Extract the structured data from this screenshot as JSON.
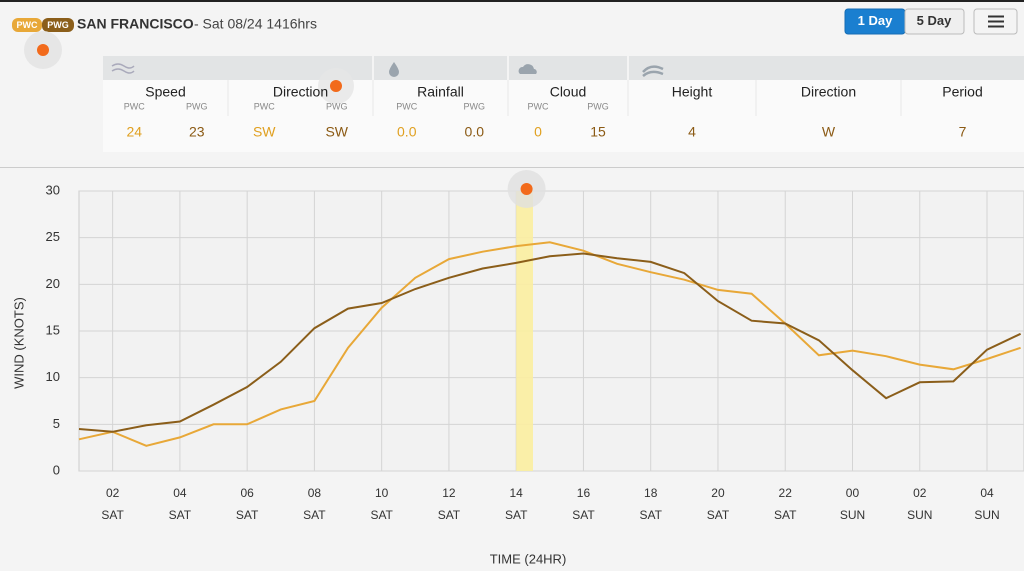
{
  "header": {
    "badges": [
      "PWC",
      "PWG"
    ],
    "location": "SAN FRANCISCO",
    "timestamp": " - Sat 08/24 1416hrs",
    "buttons": [
      "1 Day",
      "5 Day"
    ]
  },
  "conditions": [
    {
      "title": "Speed",
      "sub": [
        "PWC",
        "PWG"
      ],
      "values": [
        "24",
        "23"
      ]
    },
    {
      "title": "Direction",
      "sub": [
        "PWC",
        "PWG"
      ],
      "values": [
        "SW",
        "SW"
      ]
    },
    {
      "title": "Rainfall",
      "sub": [
        "PWC",
        "PWG"
      ],
      "values": [
        "0.0",
        "0.0"
      ]
    },
    {
      "title": "Cloud",
      "sub": [
        "PWC",
        "PWG"
      ],
      "values": [
        "0",
        "15"
      ]
    },
    {
      "title": "Height",
      "values": [
        "4"
      ]
    },
    {
      "title": "Direction",
      "values": [
        "W"
      ]
    },
    {
      "title": "Period",
      "values": [
        "7"
      ]
    }
  ],
  "chart_data": {
    "type": "line",
    "y_label": "WIND (KNOTS)",
    "x_label": "TIME (24HR)",
    "x": [
      1,
      2,
      3,
      4,
      5,
      6,
      7,
      8,
      9,
      10,
      11,
      12,
      13,
      14,
      15,
      16,
      17,
      18,
      19,
      20,
      21,
      22,
      23,
      24,
      25,
      26,
      27,
      28,
      29
    ],
    "series": [
      {
        "name": "PWC",
        "color": "#e8a838",
        "values": [
          3.4,
          4.2,
          2.7,
          3.6,
          5.0,
          5.0,
          6.6,
          7.5,
          13.2,
          17.5,
          20.7,
          22.7,
          23.5,
          24.1,
          24.5,
          23.6,
          22.2,
          21.3,
          20.5,
          19.4,
          19.0,
          15.8,
          12.4,
          12.9,
          12.3,
          11.4,
          10.9,
          12.0,
          13.2
        ]
      },
      {
        "name": "PWG",
        "color": "#8b5e1a",
        "values": [
          4.5,
          4.2,
          4.9,
          5.3,
          7.1,
          9.0,
          11.7,
          15.3,
          17.4,
          18.0,
          19.5,
          20.7,
          21.7,
          22.3,
          23.0,
          23.3,
          22.8,
          22.4,
          21.2,
          18.2,
          16.1,
          15.8,
          14.0,
          10.8,
          7.8,
          9.5,
          9.6,
          13.0,
          14.7
        ]
      }
    ],
    "xlim": [
      1,
      29.1
    ],
    "xticks": [
      {
        "value": 2,
        "label": "02"
      },
      {
        "value": 4,
        "label": "04"
      },
      {
        "value": 6,
        "label": "06"
      },
      {
        "value": 8,
        "label": "08"
      },
      10,
      12,
      14,
      16,
      18,
      20,
      22,
      {
        "value": 24,
        "label": "00"
      },
      {
        "value": 26,
        "label": "02"
      },
      {
        "value": 28,
        "label": "04"
      }
    ],
    "xtick_days": [
      "SAT",
      "SAT",
      "SAT",
      "SAT",
      "SAT",
      "SAT",
      "SAT",
      "SAT",
      "SAT",
      "SAT",
      "SAT",
      "SUN",
      "SUN",
      "SUN"
    ],
    "highlight_x": [
      14,
      14.5
    ],
    "ylim": [
      0,
      30
    ],
    "yticks": [
      0,
      5,
      10,
      15,
      20,
      25,
      30
    ],
    "grid": true
  }
}
